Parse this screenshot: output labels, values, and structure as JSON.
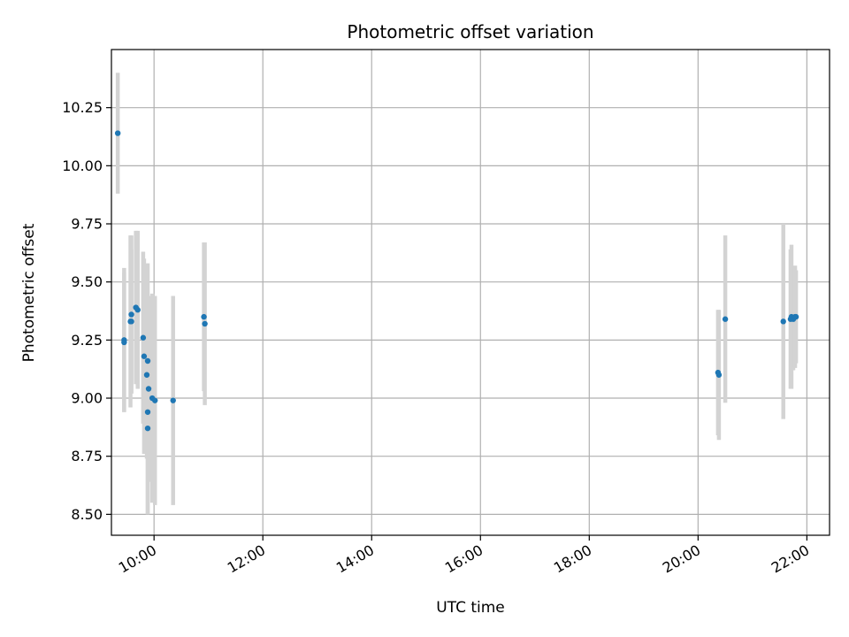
{
  "chart_data": {
    "type": "scatter",
    "title": "Photometric offset variation",
    "xlabel": "UTC time",
    "ylabel": "Photometric offset",
    "x_axis_kind": "time",
    "xlim": [
      "09:13",
      "22:25"
    ],
    "ylim": [
      8.41,
      10.5
    ],
    "x_ticks": [
      "10:00",
      "12:00",
      "14:00",
      "16:00",
      "18:00",
      "20:00",
      "22:00"
    ],
    "y_ticks": [
      "8.50",
      "8.75",
      "9.00",
      "9.25",
      "9.50",
      "9.75",
      "10.00",
      "10.25"
    ],
    "grid": true,
    "legend": "none",
    "colors": {
      "point": "#1f77b4",
      "errorbar": "#d3d3d3",
      "grid": "#b0b0b0",
      "axis": "#000000"
    },
    "points": [
      {
        "x": "09:20",
        "y": 10.14,
        "err": 0.26
      },
      {
        "x": "09:27",
        "y": 9.25,
        "err": 0.31
      },
      {
        "x": "09:27",
        "y": 9.24,
        "err": 0.3
      },
      {
        "x": "09:34",
        "y": 9.33,
        "err": 0.37
      },
      {
        "x": "09:35",
        "y": 9.36,
        "err": 0.34
      },
      {
        "x": "09:35",
        "y": 9.33,
        "err": 0.31
      },
      {
        "x": "09:40",
        "y": 9.39,
        "err": 0.33
      },
      {
        "x": "09:42",
        "y": 9.38,
        "err": 0.34
      },
      {
        "x": "09:48",
        "y": 9.26,
        "err": 0.37
      },
      {
        "x": "09:49",
        "y": 9.18,
        "err": 0.42
      },
      {
        "x": "09:52",
        "y": 9.1,
        "err": 0.36
      },
      {
        "x": "09:53",
        "y": 9.16,
        "err": 0.42
      },
      {
        "x": "09:53",
        "y": 8.94,
        "err": 0.44
      },
      {
        "x": "09:53",
        "y": 8.87,
        "err": 0.37
      },
      {
        "x": "09:54",
        "y": 9.04,
        "err": 0.4
      },
      {
        "x": "09:58",
        "y": 9.0,
        "err": 0.45
      },
      {
        "x": "10:01",
        "y": 8.99,
        "err": 0.45
      },
      {
        "x": "10:21",
        "y": 8.99,
        "err": 0.45
      },
      {
        "x": "10:55",
        "y": 9.35,
        "err": 0.32
      },
      {
        "x": "10:56",
        "y": 9.32,
        "err": 0.35
      },
      {
        "x": "20:22",
        "y": 9.11,
        "err": 0.27
      },
      {
        "x": "20:23",
        "y": 9.1,
        "err": 0.28
      },
      {
        "x": "20:30",
        "y": 9.34,
        "err": 0.36
      },
      {
        "x": "21:34",
        "y": 9.33,
        "err": 0.42
      },
      {
        "x": "21:42",
        "y": 9.34,
        "err": 0.3
      },
      {
        "x": "21:43",
        "y": 9.35,
        "err": 0.31
      },
      {
        "x": "21:45",
        "y": 9.34,
        "err": 0.22
      },
      {
        "x": "21:47",
        "y": 9.35,
        "err": 0.22
      },
      {
        "x": "21:48",
        "y": 9.35,
        "err": 0.2
      }
    ]
  }
}
